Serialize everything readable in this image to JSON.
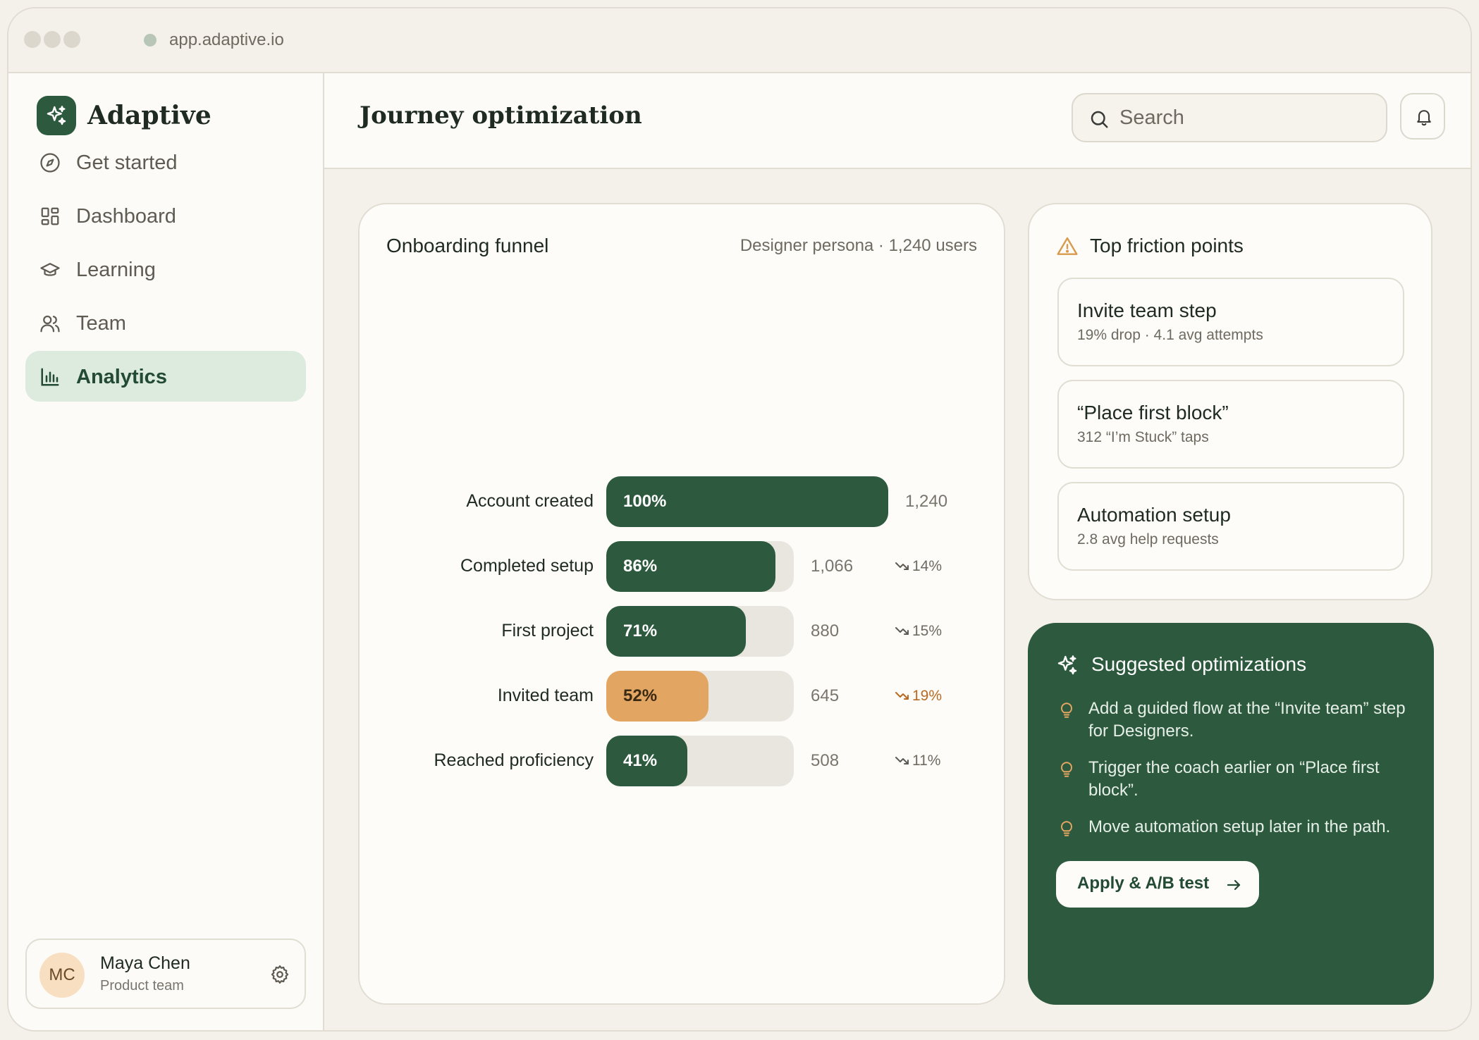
{
  "browser": {
    "url": "app.adaptive.io"
  },
  "sidebar": {
    "brand": "Adaptive",
    "items": [
      {
        "label": "Get started",
        "icon": "compass-icon",
        "active": false
      },
      {
        "label": "Dashboard",
        "icon": "dashboard-grid-icon",
        "active": false
      },
      {
        "label": "Learning",
        "icon": "graduation-cap-icon",
        "active": false
      },
      {
        "label": "Team",
        "icon": "users-icon",
        "active": false
      },
      {
        "label": "Analytics",
        "icon": "bar-chart-icon",
        "active": true
      }
    ],
    "user": {
      "initials": "MC",
      "name": "Maya Chen",
      "role": "Product team"
    }
  },
  "header": {
    "title": "Journey optimization",
    "search_placeholder": "Search"
  },
  "funnel": {
    "title": "Onboarding funnel",
    "subtitle": "Designer persona · 1,240 users",
    "steps": [
      {
        "label": "Account created",
        "pct_label": "100%",
        "pct": 1.0,
        "count": "1,240",
        "drop": "",
        "highlight": false
      },
      {
        "label": "Completed setup",
        "pct_label": "86%",
        "pct": 0.86,
        "count": "1,066",
        "drop": "14%",
        "highlight": false
      },
      {
        "label": "First project",
        "pct_label": "71%",
        "pct": 0.71,
        "count": "880",
        "drop": "15%",
        "highlight": false
      },
      {
        "label": "Invited team",
        "pct_label": "52%",
        "pct": 0.52,
        "count": "645",
        "drop": "19%",
        "highlight": true
      },
      {
        "label": "Reached proficiency",
        "pct_label": "41%",
        "pct": 0.41,
        "count": "508",
        "drop": "11%",
        "highlight": false
      }
    ]
  },
  "friction": {
    "title": "Top friction points",
    "items": [
      {
        "title": "Invite team step",
        "detail": "19% drop · 4.1 avg attempts"
      },
      {
        "title": "“Place first block”",
        "detail": "312 “I’m Stuck” taps"
      },
      {
        "title": "Automation setup",
        "detail": "2.8 avg help requests"
      }
    ]
  },
  "suggestions": {
    "title": "Suggested optimizations",
    "items": [
      "Add a guided flow at the “Invite team” step for Designers.",
      "Trigger the coach earlier on “Place first block”.",
      "Move automation setup later in the path."
    ],
    "cta": "Apply & A/B test"
  },
  "colors": {
    "brand_green": "#2d5a3e",
    "active_nav_bg": "#dcebde",
    "warning_orange": "#e3a562",
    "background": "#f4f1ea"
  }
}
